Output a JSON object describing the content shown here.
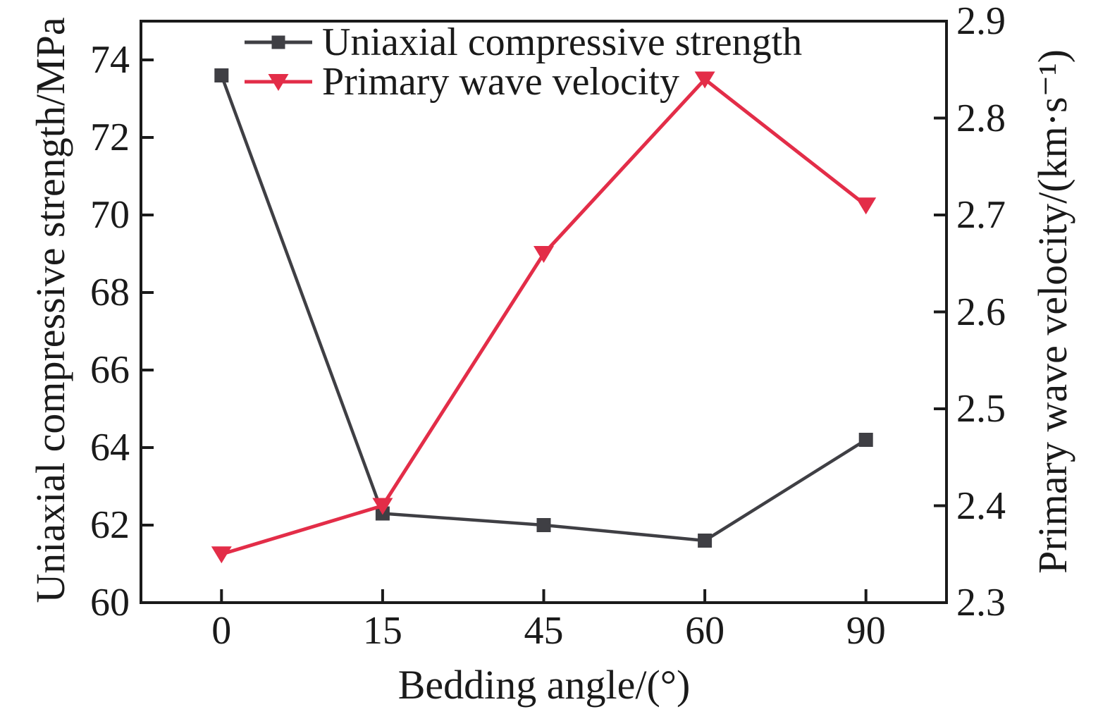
{
  "chart_data": {
    "type": "line",
    "title": "",
    "x": {
      "label": "Bedding angle/(°)",
      "categories": [
        "0",
        "15",
        "45",
        "60",
        "90"
      ],
      "spacing": "categorical-even"
    },
    "left_axis": {
      "label": "Uniaxial compressive strength/MPa",
      "min": 60,
      "max": 75,
      "tick_values": [
        60,
        62,
        64,
        66,
        68,
        70,
        72,
        74
      ],
      "tick_labels": [
        "60",
        "62",
        "64",
        "66",
        "68",
        "70",
        "72",
        "74"
      ]
    },
    "right_axis": {
      "label": "Primary wave velocity/(km·s⁻¹)",
      "min": 2.3,
      "max": 2.9,
      "tick_values": [
        2.3,
        2.4,
        2.5,
        2.6,
        2.7,
        2.8,
        2.9
      ],
      "tick_labels": [
        "2.3",
        "2.4",
        "2.5",
        "2.6",
        "2.7",
        "2.8",
        "2.9"
      ]
    },
    "series": [
      {
        "name": "Uniaxial compressive strength",
        "axis": "left",
        "marker": "square",
        "color": "#3f3f44",
        "values": [
          73.6,
          62.3,
          62.0,
          61.6,
          64.2
        ]
      },
      {
        "name": "Primary wave velocity",
        "axis": "right",
        "marker": "triangle-down",
        "color": "#e32d48",
        "values": [
          2.35,
          2.4,
          2.66,
          2.84,
          2.71
        ]
      }
    ],
    "legend": {
      "position": "top-left-inside",
      "entries": [
        "Uniaxial compressive strength",
        "Primary wave velocity"
      ]
    },
    "grid": false,
    "ink_color": "#1a1a1a"
  }
}
